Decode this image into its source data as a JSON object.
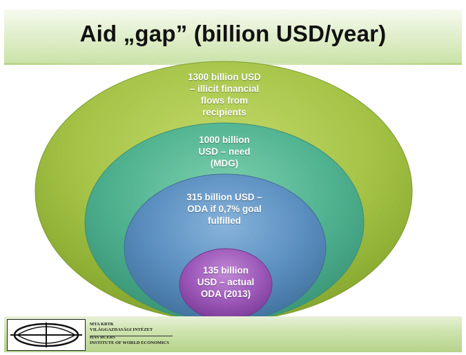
{
  "slide": {
    "title": "Aid „gap” (billion USD/year)"
  },
  "diagram": {
    "type": "nested-ellipses",
    "circles": [
      {
        "name": "illicit-flows",
        "label_lines": [
          "1300 billion USD",
          "– illicit financial",
          "flows from",
          "recipients"
        ],
        "color": "#9bbb3e"
      },
      {
        "name": "need-mdg",
        "label_lines": [
          "1000 billion",
          "USD – need",
          "(MDG)"
        ],
        "color": "#52b08f"
      },
      {
        "name": "oda-goal",
        "label_lines": [
          "315 billion USD –",
          "ODA if 0,7% goal",
          "fulfilled"
        ],
        "color": "#5a8fbf"
      },
      {
        "name": "actual-oda",
        "label_lines": [
          "135 billion",
          "USD – actual",
          "ODA (2013)"
        ],
        "color": "#9a55b6"
      }
    ]
  },
  "footer": {
    "institute_lines": [
      "MTA KRTK",
      "VILÁGGAZDASÁGI INTÉZET",
      "HAS RCERS",
      "INSTITUTE OF WORLD ECONOMICS"
    ],
    "colors": {
      "band": "#cfe4b0",
      "accent": "#8dc63f"
    }
  }
}
